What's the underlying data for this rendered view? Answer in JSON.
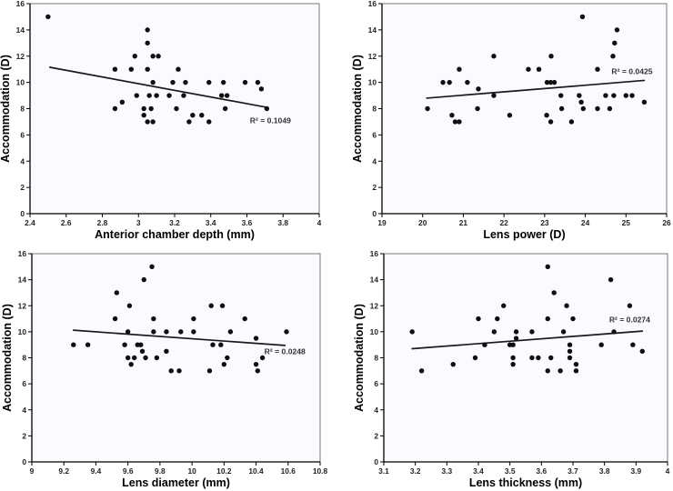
{
  "figure": {
    "description": "Four scatter plots of accommodation versus ocular biometric parameters with linear trend lines"
  },
  "style": {
    "dot_color": "#0f0f0f",
    "trend_color": "#1a1a1a",
    "axis_color": "#000000",
    "frame_color": "#7a7a7a",
    "plot_bg": "#fafaff",
    "r2_color": "#333333"
  },
  "chart_data": [
    {
      "type": "scatter",
      "xlabel": "Anterior chamber depth (mm)",
      "ylabel": "Accommodation (D)",
      "xlim": [
        2.4,
        4
      ],
      "ylim": [
        0,
        16
      ],
      "grid": false,
      "legend": "none",
      "r2_label": "R² = 0.1049",
      "r2_pos": [
        3.73,
        7.1
      ],
      "trend": [
        [
          2.51,
          11.15
        ],
        [
          3.71,
          8.1
        ]
      ],
      "xticks": [
        {
          "v": 2.4,
          "label": "2.4"
        },
        {
          "v": 2.6,
          "label": "2.6"
        },
        {
          "v": 2.8,
          "label": "2.8"
        },
        {
          "v": 3,
          "label": "3"
        },
        {
          "v": 3.2,
          "label": "3.2"
        },
        {
          "v": 3.4,
          "label": "3.4"
        },
        {
          "v": 3.6,
          "label": "3.6"
        },
        {
          "v": 3.8,
          "label": "3.8"
        },
        {
          "v": 4,
          "label": "4"
        }
      ],
      "yticks": [
        {
          "v": 0,
          "label": "0"
        },
        {
          "v": 2,
          "label": "2"
        },
        {
          "v": 4,
          "label": "4"
        },
        {
          "v": 6,
          "label": "6"
        },
        {
          "v": 8,
          "label": "8"
        },
        {
          "v": 10,
          "label": "10"
        },
        {
          "v": 12,
          "label": "12"
        },
        {
          "v": 14,
          "label": "14"
        },
        {
          "v": 16,
          "label": "16"
        }
      ],
      "points": [
        [
          2.5,
          15
        ],
        [
          3.05,
          14
        ],
        [
          3.05,
          13
        ],
        [
          2.98,
          12
        ],
        [
          3.08,
          12
        ],
        [
          3.11,
          12
        ],
        [
          2.87,
          11
        ],
        [
          2.96,
          11
        ],
        [
          3.05,
          11
        ],
        [
          3.22,
          11
        ],
        [
          3.08,
          10
        ],
        [
          3.19,
          10
        ],
        [
          3.26,
          10
        ],
        [
          3.39,
          10
        ],
        [
          3.47,
          10
        ],
        [
          3.59,
          10
        ],
        [
          3.66,
          10
        ],
        [
          3.68,
          9.5
        ],
        [
          2.99,
          9
        ],
        [
          3.06,
          9
        ],
        [
          3.1,
          9
        ],
        [
          3.17,
          9
        ],
        [
          3.25,
          9
        ],
        [
          3.46,
          9
        ],
        [
          3.49,
          9
        ],
        [
          2.91,
          8.5
        ],
        [
          2.87,
          8
        ],
        [
          3.03,
          8
        ],
        [
          3.07,
          8
        ],
        [
          3.21,
          8
        ],
        [
          3.48,
          8
        ],
        [
          3.71,
          8
        ],
        [
          3.03,
          7.5
        ],
        [
          3.3,
          7.5
        ],
        [
          3.35,
          7.5
        ],
        [
          3.05,
          7
        ],
        [
          3.08,
          7
        ],
        [
          3.28,
          7
        ],
        [
          3.39,
          7
        ]
      ]
    },
    {
      "type": "scatter",
      "xlabel": "Lens power (D)",
      "ylabel": "Accommodation (D)",
      "xlim": [
        19,
        26
      ],
      "ylim": [
        0,
        16
      ],
      "grid": false,
      "legend": "none",
      "r2_label": "R² = 0.0425",
      "r2_pos": [
        25.15,
        10.85
      ],
      "trend": [
        [
          20.1,
          8.8
        ],
        [
          25.45,
          10.15
        ]
      ],
      "xticks": [
        {
          "v": 19,
          "label": "19"
        },
        {
          "v": 20,
          "label": "20"
        },
        {
          "v": 21,
          "label": "21"
        },
        {
          "v": 22,
          "label": "22"
        },
        {
          "v": 23,
          "label": "23"
        },
        {
          "v": 24,
          "label": "24"
        },
        {
          "v": 25,
          "label": "25"
        },
        {
          "v": 26,
          "label": "26"
        }
      ],
      "yticks": [
        {
          "v": 0,
          "label": "0"
        },
        {
          "v": 2,
          "label": "2"
        },
        {
          "v": 4,
          "label": "4"
        },
        {
          "v": 6,
          "label": "6"
        },
        {
          "v": 8,
          "label": "8"
        },
        {
          "v": 10,
          "label": "10"
        },
        {
          "v": 12,
          "label": "12"
        },
        {
          "v": 14,
          "label": "14"
        },
        {
          "v": 16,
          "label": "16"
        }
      ],
      "points": [
        [
          23.93,
          15
        ],
        [
          24.78,
          14
        ],
        [
          24.72,
          13
        ],
        [
          21.75,
          12
        ],
        [
          23.16,
          12
        ],
        [
          24.68,
          12
        ],
        [
          20.9,
          11
        ],
        [
          22.6,
          11
        ],
        [
          22.86,
          11
        ],
        [
          24.3,
          11
        ],
        [
          20.5,
          10
        ],
        [
          20.66,
          10
        ],
        [
          21.1,
          10
        ],
        [
          23.06,
          10
        ],
        [
          23.15,
          10
        ],
        [
          23.24,
          10
        ],
        [
          21.37,
          9.5
        ],
        [
          21.75,
          9
        ],
        [
          23.4,
          9
        ],
        [
          23.85,
          9
        ],
        [
          24.5,
          9
        ],
        [
          24.7,
          9
        ],
        [
          25.0,
          9
        ],
        [
          25.15,
          9
        ],
        [
          23.9,
          8.5
        ],
        [
          25.45,
          8.5
        ],
        [
          20.12,
          8
        ],
        [
          21.35,
          8
        ],
        [
          23.42,
          8
        ],
        [
          23.95,
          8
        ],
        [
          24.3,
          8
        ],
        [
          24.6,
          8
        ],
        [
          20.72,
          7.5
        ],
        [
          22.14,
          7.5
        ],
        [
          23.05,
          7.5
        ],
        [
          20.8,
          7
        ],
        [
          20.9,
          7
        ],
        [
          23.15,
          7
        ],
        [
          23.66,
          7
        ]
      ]
    },
    {
      "type": "scatter",
      "xlabel": "Lens diameter (mm)",
      "ylabel": "Accommodation (D)",
      "xlim": [
        9,
        10.8
      ],
      "ylim": [
        0,
        16
      ],
      "grid": false,
      "legend": "none",
      "r2_label": "R² = 0.0248",
      "r2_pos": [
        10.58,
        8.5
      ],
      "trend": [
        [
          9.26,
          10.12
        ],
        [
          10.58,
          8.95
        ]
      ],
      "xticks": [
        {
          "v": 9,
          "label": "9"
        },
        {
          "v": 9.2,
          "label": "9.2"
        },
        {
          "v": 9.4,
          "label": "9.4"
        },
        {
          "v": 9.6,
          "label": "9.6"
        },
        {
          "v": 9.8,
          "label": "9.8"
        },
        {
          "v": 10,
          "label": "10"
        },
        {
          "v": 10.2,
          "label": "10.2"
        },
        {
          "v": 10.4,
          "label": "10.4"
        },
        {
          "v": 10.6,
          "label": "10.6"
        },
        {
          "v": 10.8,
          "label": "10.8"
        }
      ],
      "yticks": [
        {
          "v": 0,
          "label": "0"
        },
        {
          "v": 2,
          "label": "2"
        },
        {
          "v": 4,
          "label": "4"
        },
        {
          "v": 6,
          "label": "6"
        },
        {
          "v": 8,
          "label": "8"
        },
        {
          "v": 10,
          "label": "10"
        },
        {
          "v": 12,
          "label": "12"
        },
        {
          "v": 14,
          "label": "14"
        },
        {
          "v": 16,
          "label": "16"
        }
      ],
      "points": [
        [
          9.75,
          15
        ],
        [
          9.7,
          14
        ],
        [
          9.53,
          13
        ],
        [
          9.61,
          12
        ],
        [
          10.12,
          12
        ],
        [
          10.19,
          12
        ],
        [
          9.52,
          11
        ],
        [
          9.76,
          11
        ],
        [
          10.01,
          11
        ],
        [
          10.33,
          11
        ],
        [
          9.6,
          10
        ],
        [
          9.76,
          10
        ],
        [
          9.84,
          10
        ],
        [
          9.93,
          10
        ],
        [
          10.01,
          10
        ],
        [
          10.24,
          10
        ],
        [
          10.59,
          10
        ],
        [
          10.4,
          9.5
        ],
        [
          9.26,
          9
        ],
        [
          9.35,
          9
        ],
        [
          9.58,
          9
        ],
        [
          9.66,
          9
        ],
        [
          9.68,
          9
        ],
        [
          10.13,
          9
        ],
        [
          10.18,
          9
        ],
        [
          9.69,
          8.5
        ],
        [
          9.84,
          8.5
        ],
        [
          9.6,
          8
        ],
        [
          9.64,
          8
        ],
        [
          9.71,
          8
        ],
        [
          9.78,
          8
        ],
        [
          10.22,
          8
        ],
        [
          10.44,
          8
        ],
        [
          9.62,
          7.5
        ],
        [
          10.2,
          7.5
        ],
        [
          10.4,
          7.5
        ],
        [
          9.87,
          7
        ],
        [
          9.92,
          7
        ],
        [
          10.11,
          7
        ],
        [
          10.41,
          7
        ]
      ]
    },
    {
      "type": "scatter",
      "xlabel": "Lens thickness (mm)",
      "ylabel": "Accommodation (D)",
      "xlim": [
        3.1,
        4
      ],
      "ylim": [
        0,
        16
      ],
      "grid": false,
      "legend": "none",
      "r2_label": "R² = 0.0274",
      "r2_pos": [
        3.88,
        10.95
      ],
      "trend": [
        [
          3.19,
          8.7
        ],
        [
          3.92,
          10.05
        ]
      ],
      "xticks": [
        {
          "v": 3.1,
          "label": "3.1"
        },
        {
          "v": 3.2,
          "label": "3.2"
        },
        {
          "v": 3.3,
          "label": "3.3"
        },
        {
          "v": 3.4,
          "label": "3.4"
        },
        {
          "v": 3.5,
          "label": "3.5"
        },
        {
          "v": 3.6,
          "label": "3.6"
        },
        {
          "v": 3.7,
          "label": "3.7"
        },
        {
          "v": 3.8,
          "label": "3.8"
        },
        {
          "v": 3.9,
          "label": "3.9"
        },
        {
          "v": 4,
          "label": "4"
        }
      ],
      "yticks": [
        {
          "v": 0,
          "label": "0"
        },
        {
          "v": 2,
          "label": "2"
        },
        {
          "v": 4,
          "label": "4"
        },
        {
          "v": 6,
          "label": "6"
        },
        {
          "v": 8,
          "label": "8"
        },
        {
          "v": 10,
          "label": "10"
        },
        {
          "v": 12,
          "label": "12"
        },
        {
          "v": 14,
          "label": "14"
        },
        {
          "v": 16,
          "label": "16"
        }
      ],
      "points": [
        [
          3.62,
          15
        ],
        [
          3.82,
          14
        ],
        [
          3.64,
          13
        ],
        [
          3.48,
          12
        ],
        [
          3.68,
          12
        ],
        [
          3.88,
          12
        ],
        [
          3.4,
          11
        ],
        [
          3.46,
          11
        ],
        [
          3.62,
          11
        ],
        [
          3.7,
          11
        ],
        [
          3.19,
          10
        ],
        [
          3.45,
          10
        ],
        [
          3.52,
          10
        ],
        [
          3.57,
          10
        ],
        [
          3.67,
          10
        ],
        [
          3.83,
          10
        ],
        [
          3.52,
          9.5
        ],
        [
          3.42,
          9
        ],
        [
          3.5,
          9
        ],
        [
          3.51,
          9
        ],
        [
          3.69,
          9
        ],
        [
          3.79,
          9
        ],
        [
          3.89,
          9
        ],
        [
          3.69,
          8.5
        ],
        [
          3.92,
          8.5
        ],
        [
          3.39,
          8
        ],
        [
          3.51,
          8
        ],
        [
          3.57,
          8
        ],
        [
          3.59,
          8
        ],
        [
          3.63,
          8
        ],
        [
          3.69,
          8
        ],
        [
          3.32,
          7.5
        ],
        [
          3.51,
          7.5
        ],
        [
          3.71,
          7.5
        ],
        [
          3.22,
          7
        ],
        [
          3.62,
          7
        ],
        [
          3.66,
          7
        ],
        [
          3.71,
          7
        ]
      ]
    }
  ]
}
